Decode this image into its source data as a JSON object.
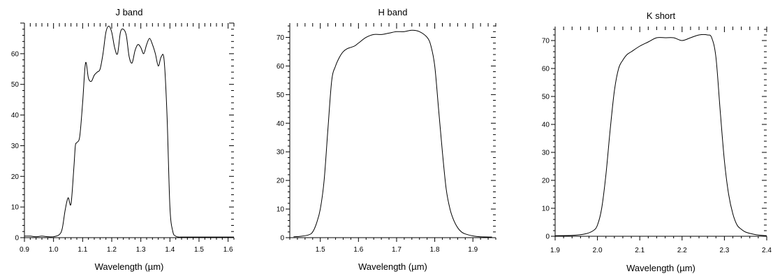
{
  "chart_data": [
    {
      "type": "line",
      "title": "J band",
      "xlabel": "Wavelength (µm)",
      "ylabel": "",
      "xlim": [
        0.9,
        1.62
      ],
      "ylim": [
        0,
        70
      ],
      "xticks": [
        0.9,
        1.0,
        1.1,
        1.2,
        1.3,
        1.4,
        1.5,
        1.6
      ],
      "xtick_labels": [
        "0.9",
        "1.0",
        "1.1",
        "1.2",
        "1.3",
        "1.4",
        "1.5",
        "1.6"
      ],
      "yticks": [
        0,
        10,
        20,
        30,
        40,
        50,
        60
      ],
      "ytick_labels": [
        "0",
        "10",
        "20",
        "30",
        "40",
        "50",
        "60"
      ],
      "grid": false,
      "series": [
        {
          "x": [
            0.9,
            0.92,
            0.94,
            0.96,
            0.98,
            1.0,
            1.02,
            1.03,
            1.04,
            1.05,
            1.06,
            1.07,
            1.075,
            1.08,
            1.09,
            1.1,
            1.11,
            1.12,
            1.13,
            1.14,
            1.15,
            1.16,
            1.17,
            1.18,
            1.19,
            1.2,
            1.21,
            1.22,
            1.23,
            1.24,
            1.25,
            1.26,
            1.27,
            1.28,
            1.29,
            1.3,
            1.31,
            1.32,
            1.33,
            1.34,
            1.35,
            1.36,
            1.37,
            1.38,
            1.39,
            1.4,
            1.41,
            1.42,
            1.43,
            1.44,
            1.45,
            1.47,
            1.5,
            1.55,
            1.6,
            1.62
          ],
          "y": [
            0.5,
            0.5,
            0.3,
            0.5,
            0.3,
            0.3,
            1,
            3,
            9,
            13,
            11,
            23,
            30,
            31,
            33,
            44,
            57,
            52,
            51,
            53,
            54,
            55,
            60,
            67,
            69,
            67,
            62,
            60,
            67,
            68,
            66,
            59,
            57,
            61,
            63,
            62,
            60,
            63,
            65,
            63,
            60,
            56,
            59,
            58,
            40,
            10,
            2,
            0.5,
            0.2,
            0.2,
            0.2,
            0.2,
            0.2,
            0.2,
            0.2,
            0.2
          ]
        }
      ]
    },
    {
      "type": "line",
      "title": "H band",
      "xlabel": "Wavelength (µm)",
      "ylabel": "",
      "xlim": [
        1.42,
        1.96
      ],
      "ylim": [
        0,
        75
      ],
      "xticks": [
        1.5,
        1.6,
        1.7,
        1.8,
        1.9
      ],
      "xtick_labels": [
        "1.5",
        "1.6",
        "1.7",
        "1.8",
        "1.9"
      ],
      "yticks": [
        0,
        10,
        20,
        30,
        40,
        50,
        60,
        70
      ],
      "ytick_labels": [
        "0",
        "10",
        "20",
        "30",
        "40",
        "50",
        "60",
        "70"
      ],
      "grid": false,
      "series": [
        {
          "x": [
            1.43,
            1.45,
            1.47,
            1.48,
            1.49,
            1.5,
            1.51,
            1.52,
            1.53,
            1.54,
            1.55,
            1.56,
            1.57,
            1.58,
            1.59,
            1.6,
            1.62,
            1.64,
            1.66,
            1.68,
            1.7,
            1.72,
            1.74,
            1.76,
            1.78,
            1.79,
            1.8,
            1.81,
            1.82,
            1.83,
            1.84,
            1.85,
            1.86,
            1.87,
            1.88,
            1.9,
            1.92,
            1.95
          ],
          "y": [
            0.3,
            0.5,
            1,
            2,
            5,
            10,
            20,
            38,
            55,
            60,
            63,
            65,
            66,
            66.5,
            67,
            68,
            70,
            71,
            71,
            71.5,
            72,
            72,
            72.5,
            72,
            70,
            67,
            60,
            45,
            30,
            17,
            10,
            6,
            3.5,
            2,
            1.3,
            0.6,
            0.3,
            0.2
          ]
        }
      ]
    },
    {
      "type": "line",
      "title": "K short",
      "xlabel": "Wavelength (µm)",
      "ylabel": "",
      "xlim": [
        1.9,
        2.4
      ],
      "ylim": [
        0,
        75
      ],
      "xticks": [
        1.9,
        2.0,
        2.1,
        2.2,
        2.3,
        2.4
      ],
      "xtick_labels": [
        "1.9",
        "2.0",
        "2.1",
        "2.2",
        "2.3",
        "2.4"
      ],
      "yticks": [
        0,
        10,
        20,
        30,
        40,
        50,
        60,
        70
      ],
      "ytick_labels": [
        "0",
        "10",
        "20",
        "30",
        "40",
        "50",
        "60",
        "70"
      ],
      "grid": false,
      "series": [
        {
          "x": [
            1.9,
            1.94,
            1.97,
            1.99,
            2.0,
            2.01,
            2.02,
            2.03,
            2.04,
            2.05,
            2.06,
            2.07,
            2.08,
            2.1,
            2.12,
            2.14,
            2.16,
            2.18,
            2.2,
            2.22,
            2.24,
            2.26,
            2.27,
            2.28,
            2.29,
            2.3,
            2.31,
            2.32,
            2.33,
            2.34,
            2.35,
            2.37,
            2.39,
            2.4
          ],
          "y": [
            0.2,
            0.3,
            0.8,
            2,
            4,
            10,
            22,
            38,
            52,
            60,
            63,
            65,
            66,
            68,
            69.5,
            71,
            71,
            71,
            70,
            71,
            72,
            72,
            71,
            64,
            45,
            27,
            15,
            8,
            4,
            2.5,
            1.5,
            0.7,
            0.3,
            0.2
          ]
        }
      ]
    }
  ]
}
